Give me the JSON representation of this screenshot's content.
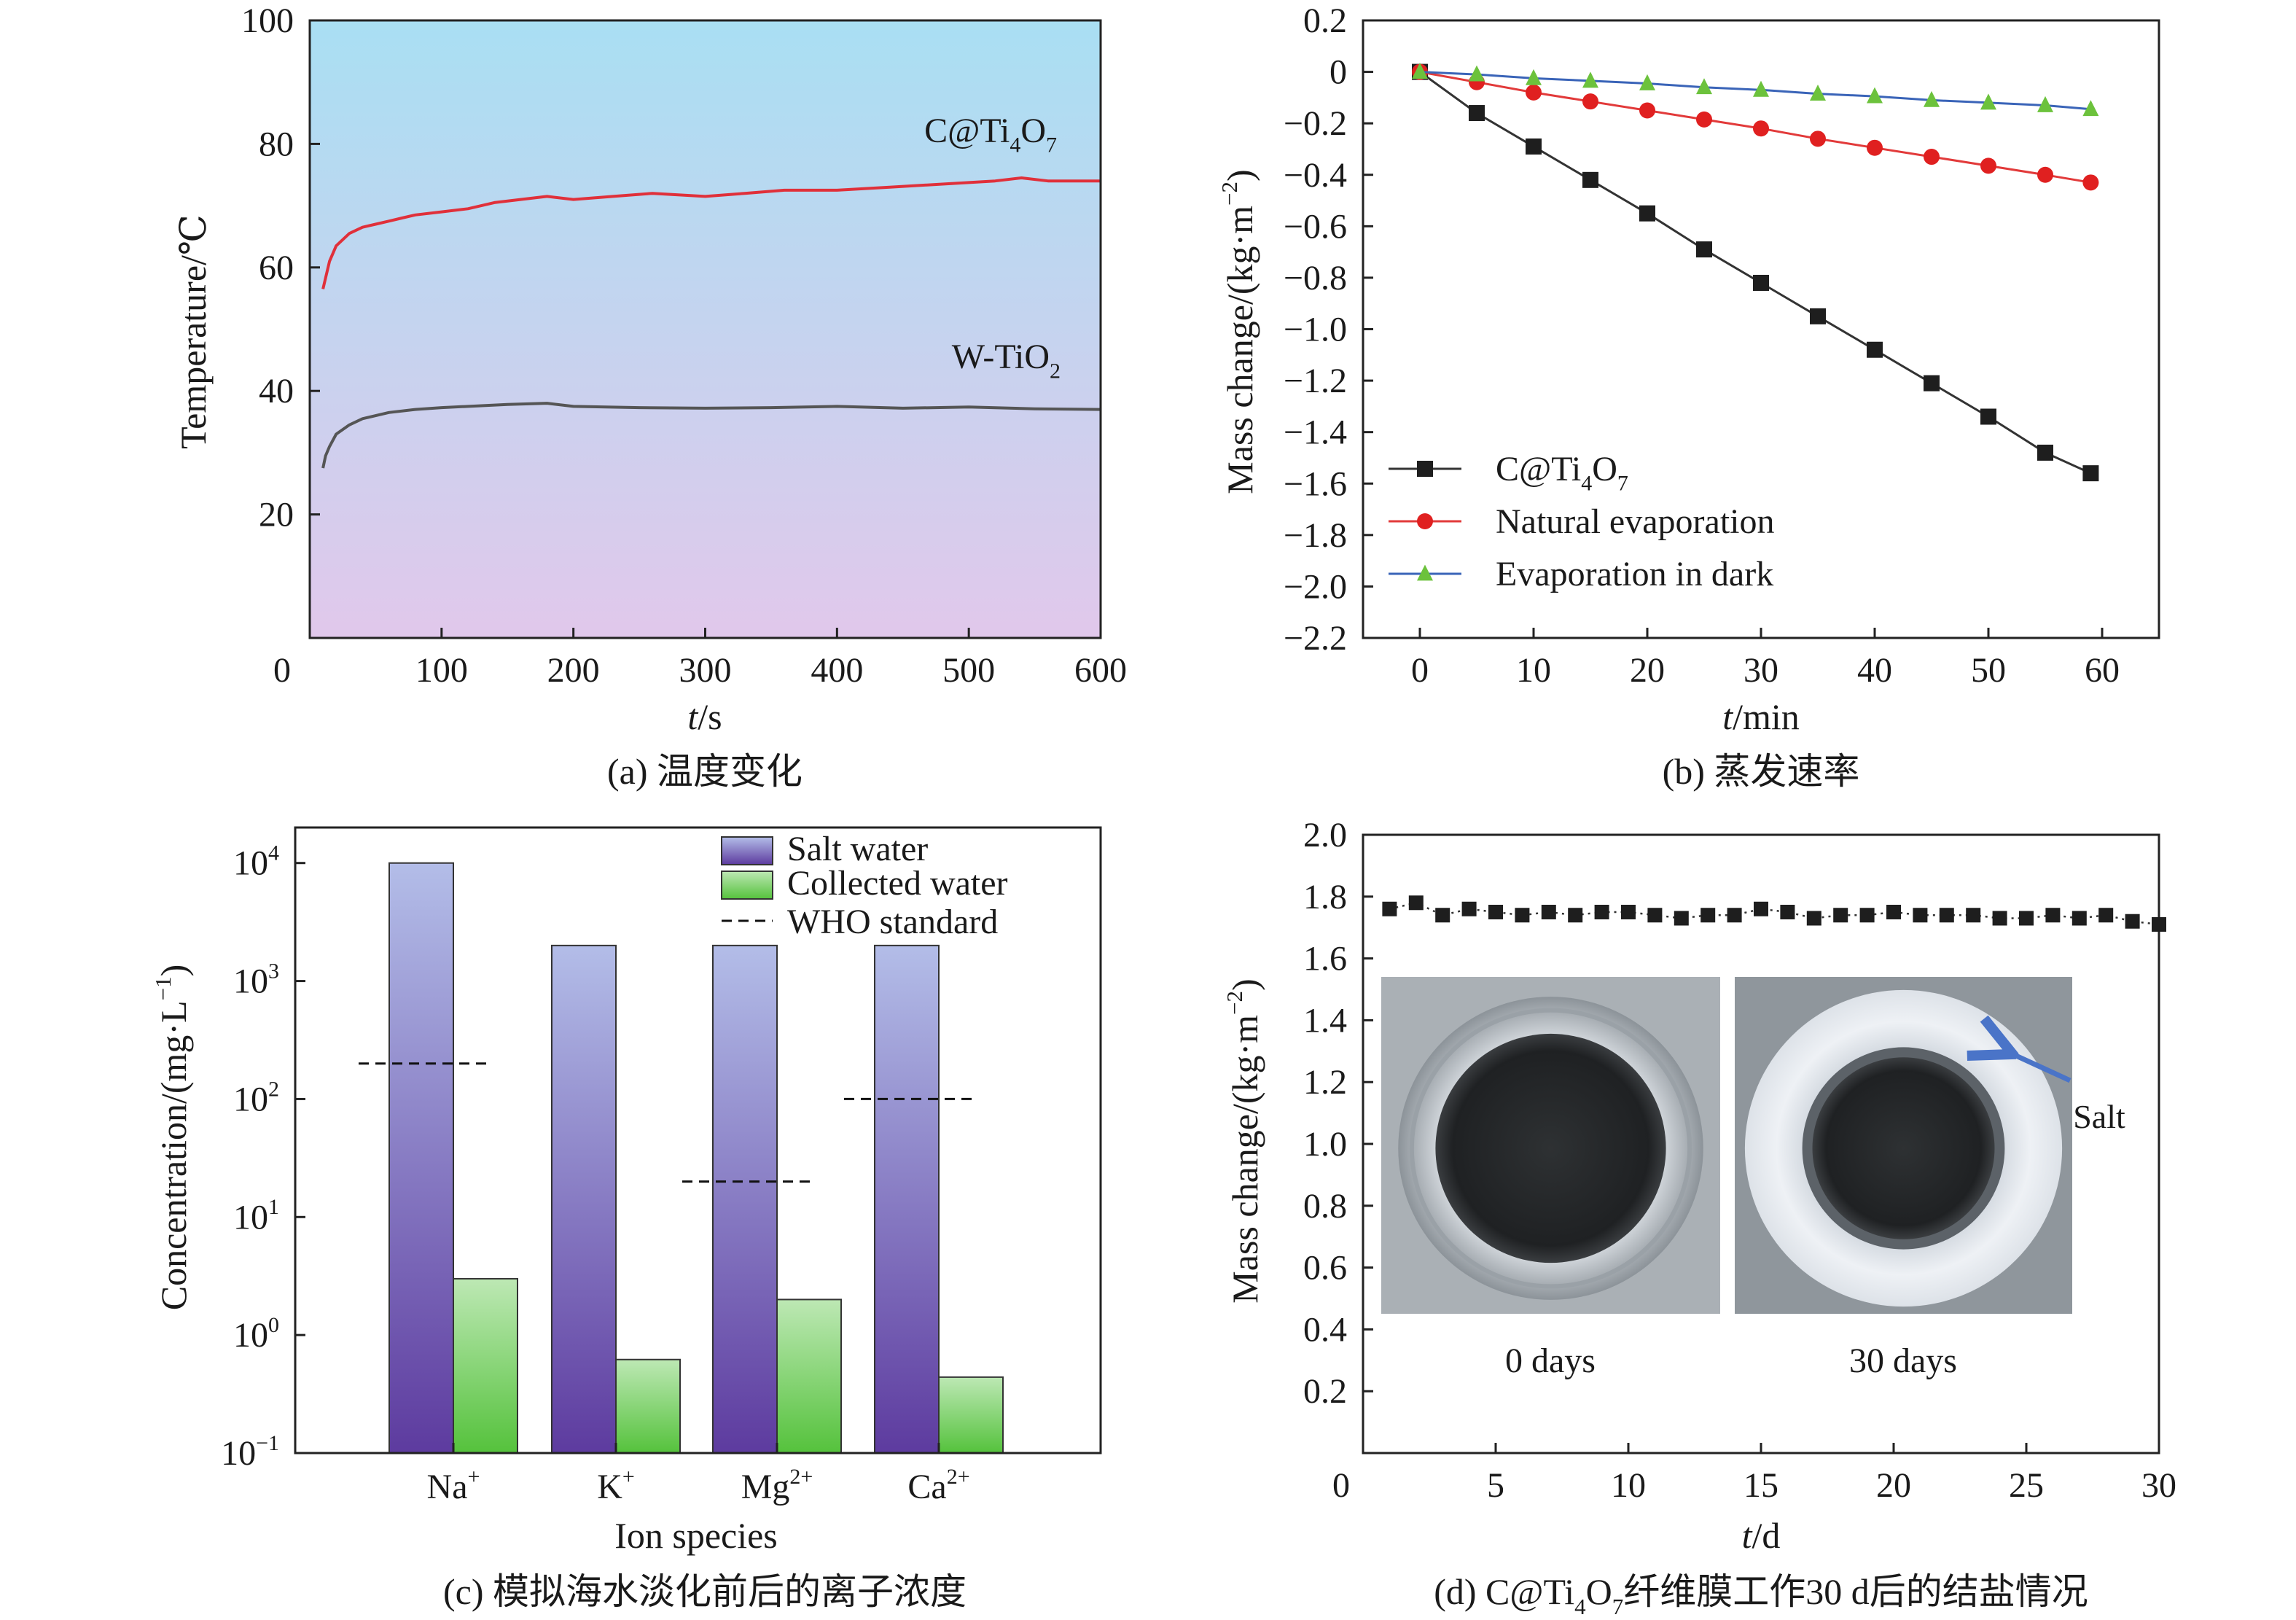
{
  "chart_data": [
    {
      "id": "a",
      "type": "line",
      "caption": "(a) 温度变化",
      "xlabel_italic": "t",
      "xlabel_rest": "/s",
      "ylabel": "Temperature/℃",
      "xlim": [
        0,
        600
      ],
      "ylim": [
        0,
        100
      ],
      "xticks": [
        0,
        100,
        200,
        300,
        400,
        500,
        600
      ],
      "yticks": [
        20,
        40,
        60,
        80,
        100
      ],
      "background_gradient": [
        "#a9dff3",
        "#e1c8eb"
      ],
      "series": [
        {
          "name_parts": [
            [
              "C@Ti",
              ""
            ],
            [
              "4",
              "sub"
            ],
            [
              "O",
              ""
            ],
            [
              "7",
              "sub"
            ]
          ],
          "color": "#e0303a",
          "x": [
            10,
            15,
            20,
            30,
            40,
            50,
            60,
            70,
            80,
            100,
            120,
            140,
            160,
            180,
            200,
            230,
            260,
            300,
            330,
            360,
            400,
            440,
            480,
            520,
            540,
            560,
            600
          ],
          "y": [
            56.5,
            61,
            63.5,
            65.5,
            66.5,
            67,
            67.5,
            68,
            68.5,
            69,
            69.5,
            70.5,
            71,
            71.5,
            71,
            71.5,
            72,
            71.5,
            72,
            72.5,
            72.5,
            73,
            73.5,
            74,
            74.5,
            74,
            74
          ]
        },
        {
          "name_parts": [
            [
              "W-TiO",
              ""
            ],
            [
              "2",
              "sub"
            ]
          ],
          "color": "#555555",
          "x": [
            10,
            12,
            15,
            20,
            30,
            40,
            60,
            80,
            100,
            150,
            180,
            200,
            250,
            300,
            350,
            400,
            450,
            500,
            550,
            600
          ],
          "y": [
            27.5,
            29.5,
            31,
            33,
            34.5,
            35.5,
            36.5,
            37,
            37.3,
            37.8,
            38,
            37.5,
            37.3,
            37.2,
            37.3,
            37.5,
            37.2,
            37.4,
            37.1,
            37
          ]
        }
      ]
    },
    {
      "id": "b",
      "type": "line",
      "caption": "(b) 蒸发速率",
      "xlabel_italic": "t",
      "xlabel_rest": "/min",
      "ylabel_parts": [
        [
          "Mass change/(kg·m",
          ""
        ],
        [
          "−2",
          "sup"
        ],
        [
          ")",
          ""
        ]
      ],
      "xlim": [
        -5,
        65
      ],
      "ylim": [
        -2.2,
        0.2
      ],
      "xticks": [
        0,
        10,
        20,
        30,
        40,
        50,
        60
      ],
      "yticks": [
        0.2,
        0,
        -0.2,
        -0.4,
        -0.6,
        -0.8,
        -1.0,
        -1.2,
        -1.4,
        -1.6,
        -1.8,
        -2.0,
        -2.2
      ],
      "ytick_labels": [
        "0.2",
        "0",
        "−0.2",
        "−0.4",
        "−0.6",
        "−0.8",
        "−1.0",
        "−1.2",
        "−1.4",
        "−1.6",
        "−1.8",
        "−2.0",
        "−2.2"
      ],
      "legend_position": "bottom-left",
      "series": [
        {
          "name_parts": [
            [
              "C@Ti",
              ""
            ],
            [
              "4",
              "sub"
            ],
            [
              "O",
              ""
            ],
            [
              "7",
              "sub"
            ]
          ],
          "color": "#333333",
          "marker": "square",
          "marker_color": "#1e1e1e",
          "x": [
            0,
            5,
            10,
            15,
            20,
            25,
            30,
            35,
            40,
            45,
            50,
            55,
            59
          ],
          "y": [
            0,
            -0.16,
            -0.29,
            -0.42,
            -0.55,
            -0.69,
            -0.82,
            -0.95,
            -1.08,
            -1.21,
            -1.34,
            -1.48,
            -1.56
          ]
        },
        {
          "name_parts": [
            [
              "Natural evaporation",
              ""
            ]
          ],
          "color": "#e23a3a",
          "marker": "circle",
          "marker_color": "#e02020",
          "x": [
            0,
            5,
            10,
            15,
            20,
            25,
            30,
            35,
            40,
            45,
            50,
            55,
            59
          ],
          "y": [
            0,
            -0.04,
            -0.08,
            -0.115,
            -0.15,
            -0.185,
            -0.22,
            -0.26,
            -0.295,
            -0.33,
            -0.365,
            -0.4,
            -0.43
          ]
        },
        {
          "name_parts": [
            [
              "Evaporation in dark",
              ""
            ]
          ],
          "color": "#3a64b8",
          "marker": "triangle",
          "marker_color": "#6cc23c",
          "x": [
            0,
            5,
            10,
            15,
            20,
            25,
            30,
            35,
            40,
            45,
            50,
            55,
            59
          ],
          "y": [
            0,
            -0.01,
            -0.025,
            -0.035,
            -0.045,
            -0.06,
            -0.07,
            -0.085,
            -0.095,
            -0.11,
            -0.12,
            -0.13,
            -0.145
          ]
        }
      ]
    },
    {
      "id": "c",
      "type": "bar",
      "caption": "(c) 模拟海水淡化前后的离子浓度",
      "xlabel": "Ion species",
      "ylabel_parts": [
        [
          "Concentration/(mg·L",
          ""
        ],
        [
          "−1",
          "sup"
        ],
        [
          ")",
          ""
        ]
      ],
      "yscale": "log",
      "ylim": [
        0.1,
        20000
      ],
      "ytick_labels": [
        [
          [
            "10",
            ""
          ],
          [
            "4",
            "sup"
          ]
        ],
        [
          [
            "10",
            ""
          ],
          [
            "3",
            "sup"
          ]
        ],
        [
          [
            "10",
            ""
          ],
          [
            "2",
            "sup"
          ]
        ],
        [
          [
            "10",
            ""
          ],
          [
            "1",
            "sup"
          ]
        ],
        [
          [
            "10",
            ""
          ],
          [
            "0",
            "sup"
          ]
        ],
        [
          [
            "10",
            ""
          ],
          [
            "−1",
            "sup"
          ]
        ]
      ],
      "ytick_values": [
        10000,
        1000,
        100,
        10,
        1,
        0.1
      ],
      "categories": [
        [
          [
            "Na",
            ""
          ],
          [
            "+",
            "sup"
          ]
        ],
        [
          [
            "K",
            ""
          ],
          [
            "+",
            "sup"
          ]
        ],
        [
          [
            "Mg",
            ""
          ],
          [
            "2+",
            "sup"
          ]
        ],
        [
          [
            "Ca",
            ""
          ],
          [
            "2+",
            "sup"
          ]
        ]
      ],
      "legend_position": "top-right",
      "series": [
        {
          "name": "Salt water",
          "gradient": [
            "#b3bde8",
            "#5d3b9f"
          ],
          "values": [
            10000,
            2000,
            2000,
            2000
          ]
        },
        {
          "name": "Collected water",
          "gradient": [
            "#bde8b4",
            "#55c23c"
          ],
          "values": [
            3.0,
            0.62,
            2.0,
            0.44
          ]
        },
        {
          "name": "WHO standard",
          "style": "dashed",
          "values": [
            200,
            null,
            20,
            100
          ]
        }
      ]
    },
    {
      "id": "d",
      "type": "scatter",
      "caption_parts": [
        [
          "(d) C@Ti",
          ""
        ],
        [
          "4",
          "sub"
        ],
        [
          "O",
          ""
        ],
        [
          "7",
          "sub"
        ],
        [
          "纤维膜工作30 d后的结盐情况",
          ""
        ]
      ],
      "xlabel_italic": "t",
      "xlabel_rest": "/d",
      "ylabel_parts": [
        [
          "Mass change/(kg·m",
          ""
        ],
        [
          "−2",
          "sup"
        ],
        [
          ")",
          ""
        ]
      ],
      "xlim": [
        0,
        30
      ],
      "ylim": [
        0.0,
        2.0
      ],
      "xticks": [
        0,
        5,
        10,
        15,
        20,
        25,
        30
      ],
      "yticks": [
        0.2,
        0.4,
        0.6,
        0.8,
        1.0,
        1.2,
        1.4,
        1.6,
        1.8,
        2.0
      ],
      "ytick_labels": [
        "0.2",
        "0.4",
        "0.6",
        "0.8",
        "1.0",
        "1.2",
        "1.4",
        "1.6",
        "1.8",
        "2.0"
      ],
      "series": [
        {
          "name": "",
          "marker": "square",
          "color": "#1e1e1e",
          "x": [
            1,
            2,
            3,
            4,
            5,
            6,
            7,
            8,
            9,
            10,
            11,
            12,
            13,
            14,
            15,
            16,
            17,
            18,
            19,
            20,
            21,
            22,
            23,
            24,
            25,
            26,
            27,
            28,
            29,
            30
          ],
          "y": [
            1.76,
            1.78,
            1.74,
            1.76,
            1.75,
            1.74,
            1.75,
            1.74,
            1.75,
            1.75,
            1.74,
            1.73,
            1.74,
            1.74,
            1.76,
            1.75,
            1.73,
            1.74,
            1.74,
            1.75,
            1.74,
            1.74,
            1.74,
            1.73,
            1.73,
            1.74,
            1.73,
            1.74,
            1.72,
            1.71
          ]
        }
      ],
      "photos": [
        {
          "label": "0 days",
          "type": "clean"
        },
        {
          "label": "30 days",
          "type": "salted"
        }
      ],
      "annotation": "Salt",
      "arrow_color": "#4a74c8"
    }
  ]
}
